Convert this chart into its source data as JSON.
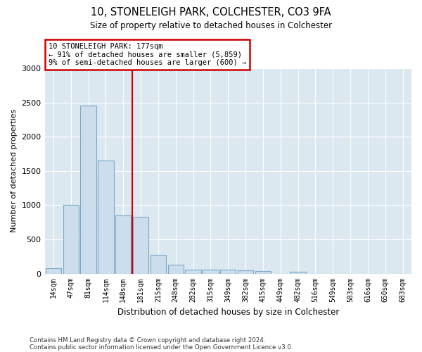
{
  "title1": "10, STONELEIGH PARK, COLCHESTER, CO3 9FA",
  "title2": "Size of property relative to detached houses in Colchester",
  "xlabel": "Distribution of detached houses by size in Colchester",
  "ylabel": "Number of detached properties",
  "footer1": "Contains HM Land Registry data © Crown copyright and database right 2024.",
  "footer2": "Contains public sector information licensed under the Open Government Licence v3.0.",
  "annotation_title": "10 STONELEIGH PARK: 177sqm",
  "annotation_line1": "← 91% of detached houses are smaller (5,859)",
  "annotation_line2": "9% of semi-detached houses are larger (600) →",
  "bar_categories": [
    "14sqm",
    "47sqm",
    "81sqm",
    "114sqm",
    "148sqm",
    "181sqm",
    "215sqm",
    "248sqm",
    "282sqm",
    "315sqm",
    "349sqm",
    "382sqm",
    "415sqm",
    "449sqm",
    "482sqm",
    "516sqm",
    "549sqm",
    "583sqm",
    "616sqm",
    "650sqm",
    "683sqm"
  ],
  "bar_values": [
    75,
    1000,
    2450,
    1650,
    850,
    830,
    275,
    130,
    60,
    55,
    55,
    50,
    35,
    0,
    30,
    0,
    0,
    0,
    0,
    0,
    0
  ],
  "bar_color": "#ccdded",
  "bar_edge_color": "#7aaac8",
  "vline_color": "#cc0000",
  "vline_x_index": 5,
  "annotation_box_color": "#cc0000",
  "background_color": "#dce8f0",
  "ylim": [
    0,
    3000
  ],
  "yticks": [
    0,
    500,
    1000,
    1500,
    2000,
    2500,
    3000
  ],
  "figwidth": 6.0,
  "figheight": 5.0,
  "dpi": 100
}
